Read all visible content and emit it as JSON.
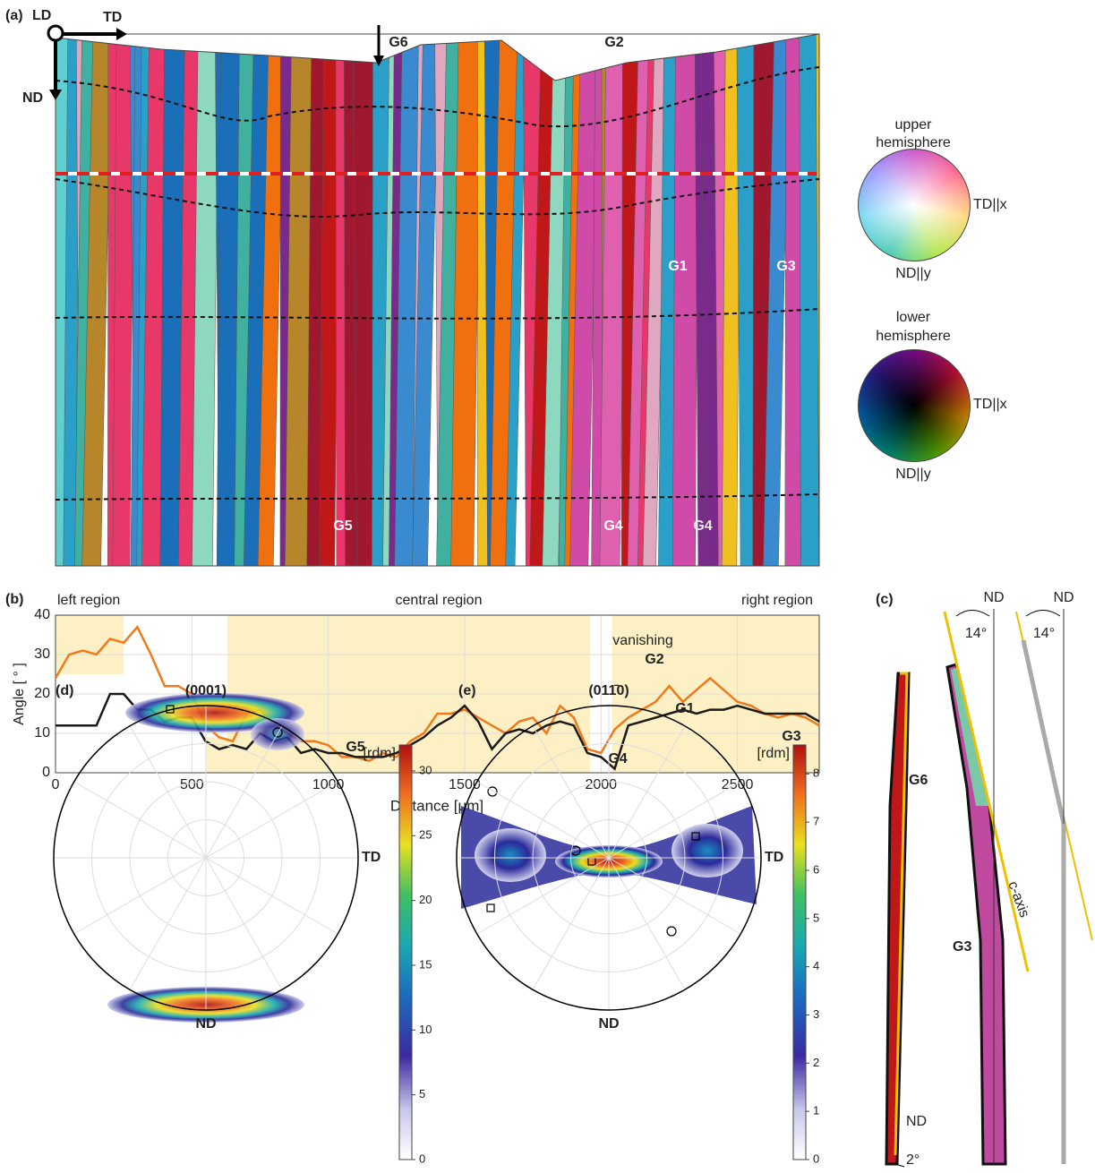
{
  "panel_a": {
    "label": "(a)",
    "ld": "LD",
    "td": "TD",
    "nd": "ND",
    "grains": [
      "G6",
      "G2",
      "G1",
      "G3",
      "G5",
      "G4",
      "G4"
    ]
  },
  "color_key": {
    "upper": {
      "title_1": "upper",
      "title_2": "hemisphere",
      "x": "TD||x",
      "y": "ND||y"
    },
    "lower": {
      "title_1": "lower",
      "title_2": "hemisphere",
      "x": "TD||x",
      "y": "ND||y"
    }
  },
  "chart_data": [
    {
      "type": "line",
      "label": "(b)",
      "x_label": "Distance [μm]",
      "y_label": "Angle [ ° ]",
      "regions": [
        "left region",
        "central region",
        "right region"
      ],
      "annotations": [
        "vanishing",
        "G2",
        "G1",
        "G3",
        "G5",
        "G4"
      ],
      "shading": [
        {
          "x": [
            630,
            1960
          ],
          "y": [
            0,
            40
          ]
        },
        {
          "x": [
            2040,
            2800
          ],
          "y": [
            0,
            40
          ]
        },
        {
          "x": [
            0,
            250
          ],
          "y": [
            25,
            40
          ]
        },
        {
          "x": [
            550,
            630
          ],
          "y": [
            0,
            9
          ]
        }
      ],
      "x": [
        0,
        50,
        100,
        150,
        200,
        250,
        300,
        350,
        400,
        450,
        500,
        550,
        600,
        650,
        700,
        750,
        800,
        850,
        900,
        950,
        1000,
        1050,
        1100,
        1150,
        1200,
        1250,
        1300,
        1350,
        1400,
        1450,
        1500,
        1550,
        1600,
        1650,
        1700,
        1750,
        1800,
        1850,
        1900,
        1950,
        2000,
        2050,
        2100,
        2150,
        2200,
        2250,
        2300,
        2350,
        2400,
        2450,
        2500,
        2550,
        2600,
        2650,
        2700,
        2750,
        2800
      ],
      "series": [
        {
          "color": "#f07a1a",
          "values": [
            24,
            30,
            31,
            30,
            34,
            33,
            37,
            30,
            22,
            22,
            20,
            12,
            9,
            8,
            15,
            16,
            12,
            10,
            8,
            8,
            7,
            4,
            4,
            3,
            5,
            4,
            8,
            10,
            15,
            15,
            16,
            14,
            12,
            10,
            13,
            14,
            10,
            17,
            14,
            6,
            5,
            11,
            14,
            16,
            18,
            22,
            18,
            21,
            24,
            21,
            18,
            17,
            15,
            14,
            15,
            14,
            12
          ]
        },
        {
          "color": "#1a1a1a",
          "values": [
            12,
            12,
            12,
            12,
            20,
            20,
            16,
            16,
            13,
            14,
            14,
            8,
            6,
            7,
            6,
            10,
            8,
            9,
            5,
            6,
            5,
            5,
            4,
            4,
            4,
            5,
            7,
            9,
            12,
            14,
            17,
            13,
            6,
            10,
            11,
            10,
            12,
            13,
            12,
            5,
            4,
            1,
            12,
            13,
            14,
            15,
            16,
            15,
            16,
            16,
            17,
            16,
            15,
            15,
            15,
            15,
            13
          ]
        }
      ],
      "xlim": [
        0,
        2800
      ],
      "ylim": [
        0,
        40
      ],
      "xticks": [
        0,
        500,
        1000,
        1500,
        2000,
        2500
      ],
      "yticks": [
        0,
        10,
        20,
        30,
        40
      ]
    },
    {
      "type": "pole-figure",
      "label": "(d)",
      "title": "(0001)",
      "x_label": "TD",
      "y_label": "ND",
      "colorbar_label": "[rdm]",
      "clim": [
        0,
        32
      ],
      "cticks": [
        0,
        5,
        10,
        15,
        20,
        25,
        30
      ]
    },
    {
      "type": "pole-figure",
      "label": "(e)",
      "title": "(011̄0)",
      "x_label": "TD",
      "y_label": "ND",
      "colorbar_label": "[rdm]",
      "clim": [
        0,
        8.6
      ],
      "cticks": [
        0,
        1,
        2,
        3,
        4,
        5,
        6,
        7,
        8
      ]
    }
  ],
  "panel_c": {
    "label": "(c)",
    "nd_1": "ND",
    "nd_2": "ND",
    "angle_1": "14°",
    "angle_2": "14°",
    "g6": "G6",
    "g3": "G3",
    "c_axis": "c-axis",
    "nd_3": "ND",
    "angle_3": "2°"
  }
}
